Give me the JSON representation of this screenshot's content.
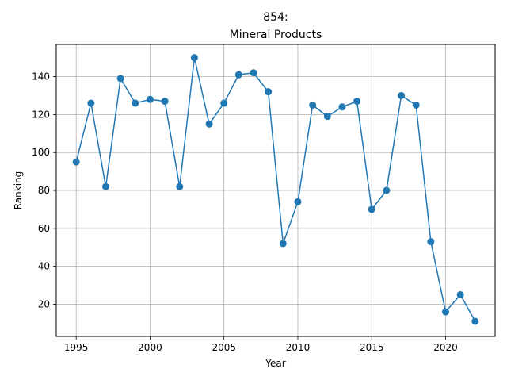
{
  "chart_data": {
    "type": "line",
    "title_line1": "854:",
    "title_line2": "Mineral Products",
    "xlabel": "Year",
    "ylabel": "Ranking",
    "xlim": [
      1993.65,
      2023.35
    ],
    "ylim": [
      3.05,
      156.95
    ],
    "xticks": [
      1995,
      2000,
      2005,
      2010,
      2015,
      2020
    ],
    "yticks": [
      20,
      40,
      60,
      80,
      100,
      120,
      140
    ],
    "grid": true,
    "series": [
      {
        "color": "#1f77b4",
        "x": [
          1995,
          1996,
          1997,
          1998,
          1999,
          2000,
          2001,
          2002,
          2003,
          2004,
          2005,
          2006,
          2007,
          2008,
          2009,
          2010,
          2011,
          2012,
          2013,
          2014,
          2015,
          2016,
          2017,
          2018,
          2019,
          2020,
          2021,
          2022
        ],
        "y": [
          95,
          126,
          82,
          139,
          126,
          128,
          127,
          82,
          150,
          115,
          126,
          141,
          142,
          132,
          52,
          74,
          125,
          119,
          124,
          127,
          70,
          80,
          130,
          125,
          53,
          16,
          25,
          11
        ]
      }
    ]
  }
}
